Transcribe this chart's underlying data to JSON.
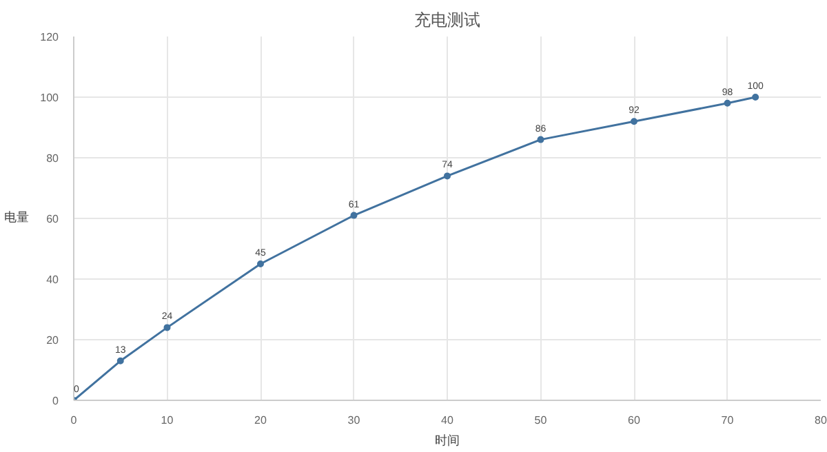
{
  "chart_data": {
    "type": "line",
    "title": "充电测试",
    "xlabel": "时间",
    "ylabel": "电量",
    "x": [
      0,
      5,
      10,
      20,
      30,
      40,
      50,
      60,
      70,
      73
    ],
    "series": [
      {
        "color": "#41729f",
        "values": [
          0,
          13,
          24,
          45,
          61,
          74,
          86,
          92,
          98,
          100
        ]
      }
    ],
    "xlim": [
      0,
      80
    ],
    "xticks": [
      0,
      10,
      20,
      30,
      40,
      50,
      60,
      70,
      80
    ],
    "ylim": [
      0,
      120
    ],
    "yticks": [
      0,
      20,
      40,
      60,
      80,
      100,
      120
    ],
    "grid": true,
    "marker": "circle",
    "line_style": "solid",
    "data_labels": true
  }
}
